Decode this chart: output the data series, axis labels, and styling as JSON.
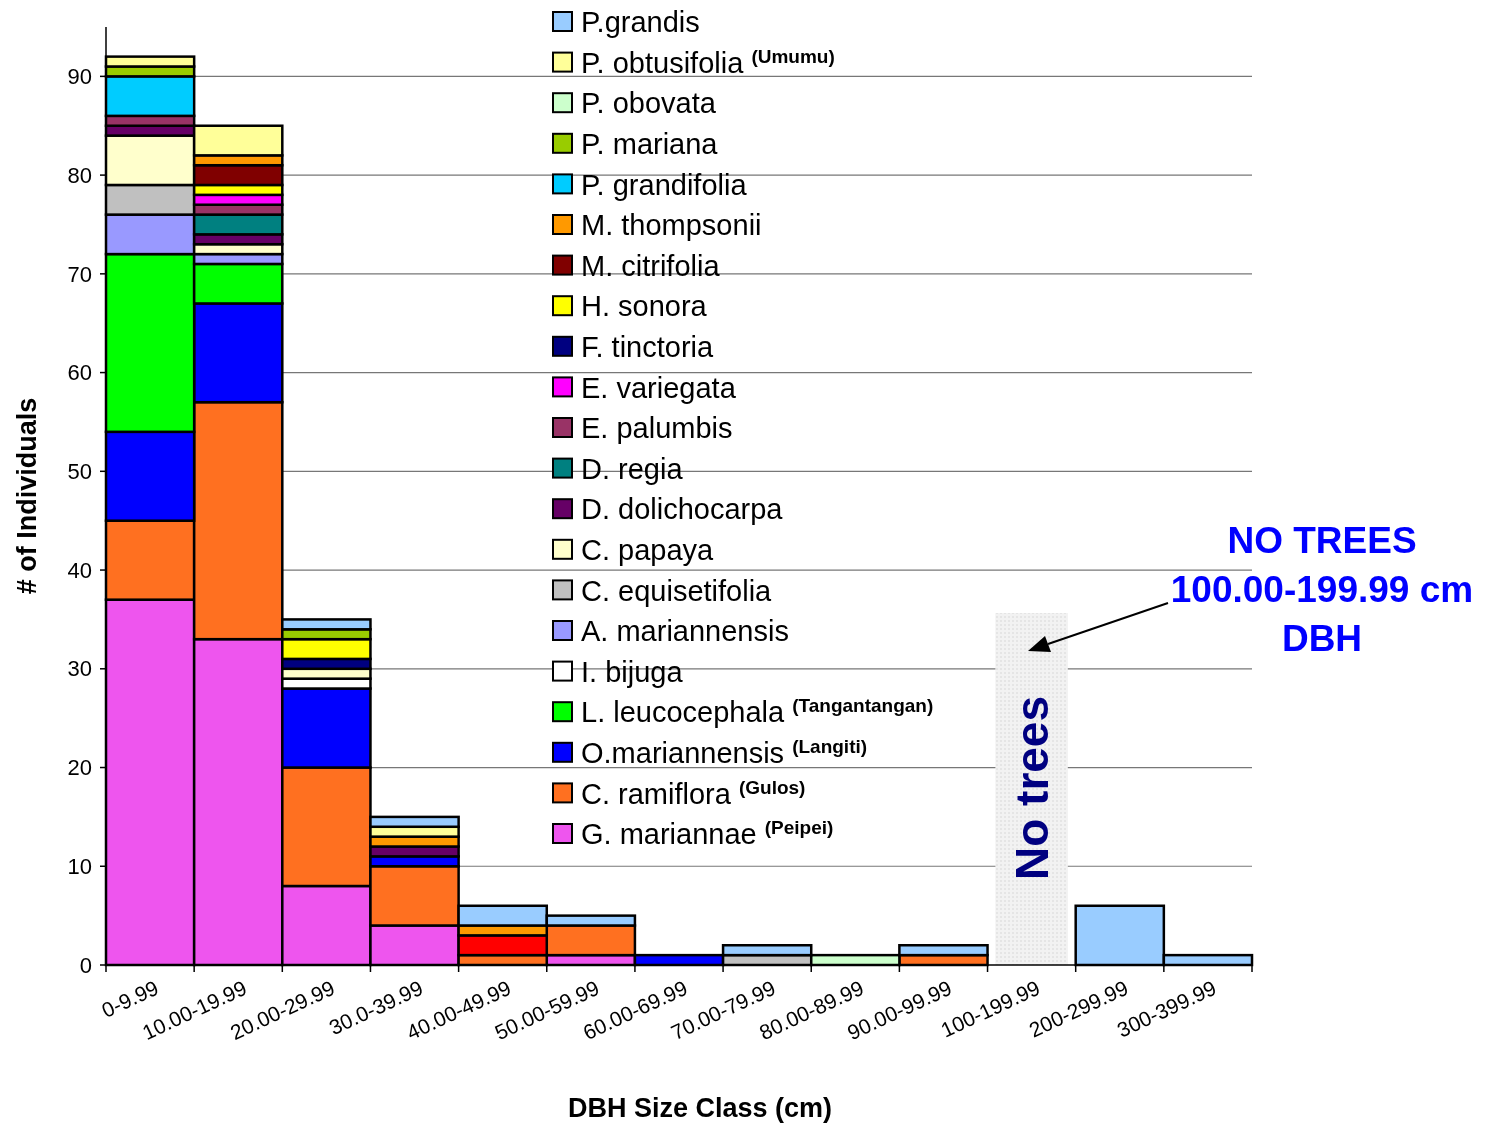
{
  "chart_data": {
    "type": "bar",
    "stacked": true,
    "xlabel": "DBH Size Class (cm)",
    "ylabel": "# of Individuals",
    "categories": [
      "0-9.99",
      "10.00-19.99",
      "20.00-29.99",
      "30.0-39.99",
      "40.00-49.99",
      "50.00-59.99",
      "60.00-69.99",
      "70.00-79.99",
      "80.00-89.99",
      "90.00-99.99",
      "100-199.99",
      "200-299.99",
      "300-399.99"
    ],
    "ylim": [
      0,
      95
    ],
    "yticks": [
      0,
      10,
      20,
      30,
      40,
      50,
      60,
      70,
      80,
      90
    ],
    "grid": "y",
    "legend": "top",
    "series": [
      {
        "name": "G. mariannae $^{(Peipei)}$",
        "color": "#ee55ee",
        "values": [
          37,
          33,
          8,
          4,
          0,
          1,
          0,
          0,
          0,
          0,
          0,
          0,
          0
        ]
      },
      {
        "name": "C. ramiflora $^{(Gulos)}$",
        "color": "#ff7020",
        "values": [
          8,
          24,
          12,
          6,
          1,
          3,
          0,
          0,
          0,
          1,
          0,
          0,
          0
        ]
      },
      {
        "color": "#ff0000",
        "values": [
          0,
          0,
          0,
          0,
          2,
          0,
          0,
          0,
          0,
          0,
          0,
          0,
          0
        ]
      },
      {
        "name": "O.mariannensis $^{(Langiti)}$",
        "color": "#0000ff",
        "values": [
          9,
          10,
          8,
          1,
          0,
          0,
          1,
          0,
          0,
          0,
          0,
          0,
          0
        ]
      },
      {
        "name": "L. leucocephala $^{(Tangantangan)}$",
        "color": "#00ff00",
        "values": [
          18,
          4,
          0,
          0,
          0,
          0,
          0,
          0,
          0,
          0,
          0,
          0,
          0
        ]
      },
      {
        "name": "I. bijuga",
        "color": "#ffffff",
        "values": [
          0,
          0,
          1,
          0,
          0,
          0,
          0,
          0,
          0,
          0,
          0,
          0,
          0
        ]
      },
      {
        "name": "A. mariannensis",
        "color": "#9999ff",
        "values": [
          4,
          1,
          0,
          0,
          0,
          0,
          0,
          0,
          0,
          0,
          0,
          0,
          0
        ]
      },
      {
        "name": "C. equisetifolia",
        "color": "#c0c0c0",
        "values": [
          3,
          0,
          0,
          0,
          0,
          0,
          0,
          1,
          0,
          0,
          0,
          0,
          0
        ]
      },
      {
        "name": "C. papaya",
        "color": "#ffffcc",
        "values": [
          5,
          1,
          1,
          0,
          0,
          0,
          0,
          0,
          0,
          0,
          0,
          0,
          0
        ]
      },
      {
        "name": "D. dolichocarpa",
        "color": "#660066",
        "values": [
          1,
          1,
          0,
          1,
          0,
          0,
          0,
          0,
          0,
          0,
          0,
          0,
          0
        ]
      },
      {
        "name": "D. regia",
        "color": "#008080",
        "values": [
          0,
          2,
          0,
          0,
          0,
          0,
          0,
          0,
          0,
          0,
          0,
          0,
          0
        ]
      },
      {
        "name": "E. palumbis",
        "color": "#993366",
        "values": [
          1,
          1,
          0,
          0,
          0,
          0,
          0,
          0,
          0,
          0,
          0,
          0,
          0
        ]
      },
      {
        "name": "E. variegata",
        "color": "#ff00ff",
        "values": [
          0,
          1,
          0,
          0,
          0,
          0,
          0,
          0,
          0,
          0,
          0,
          0,
          0
        ]
      },
      {
        "name": "F. tinctoria",
        "color": "#000080",
        "values": [
          0,
          0,
          1,
          0,
          0,
          0,
          0,
          0,
          0,
          0,
          0,
          0,
          0
        ]
      },
      {
        "name": "H. sonora",
        "color": "#ffff00",
        "values": [
          0,
          1,
          2,
          0,
          0,
          0,
          0,
          0,
          0,
          0,
          0,
          0,
          0
        ]
      },
      {
        "name": "M. citrifolia",
        "color": "#800000",
        "values": [
          0,
          2,
          0,
          0,
          0,
          0,
          0,
          0,
          0,
          0,
          0,
          0,
          0
        ]
      },
      {
        "name": "M. thompsonii",
        "color": "#ff9900",
        "values": [
          0,
          1,
          0,
          1,
          1,
          0,
          0,
          0,
          0,
          0,
          0,
          0,
          0
        ]
      },
      {
        "name": "P. grandifolia",
        "color": "#00ccff",
        "values": [
          4,
          0,
          0,
          0,
          0,
          0,
          0,
          0,
          0,
          0,
          0,
          0,
          0
        ]
      },
      {
        "name": "P. mariana",
        "color": "#99cc00",
        "values": [
          1,
          0,
          1,
          0,
          0,
          0,
          0,
          0,
          0,
          0,
          0,
          0,
          0
        ]
      },
      {
        "name": "P. obovata",
        "color": "#ccffcc",
        "values": [
          0,
          0,
          0,
          0,
          0,
          0,
          0,
          0,
          1,
          0,
          0,
          0,
          0
        ]
      },
      {
        "name": "P. obtusifolia $^{(Umumu)}$",
        "color": "#ffff99",
        "values": [
          1,
          3,
          0,
          1,
          0,
          0,
          0,
          0,
          0,
          0,
          0,
          0,
          0
        ]
      },
      {
        "name": "P.grandis",
        "color": "#99ccff",
        "values": [
          0,
          0,
          1,
          1,
          2,
          1,
          0,
          1,
          0,
          1,
          0,
          6,
          1
        ]
      }
    ],
    "bands": [
      {
        "axis": "x",
        "from": "100-199.99",
        "to": "100-199.99",
        "label": "No trees",
        "color": "#eeeeee"
      }
    ],
    "annotations": [
      "NO TREES\n100.00-199.99 cm\nDBH"
    ]
  }
}
